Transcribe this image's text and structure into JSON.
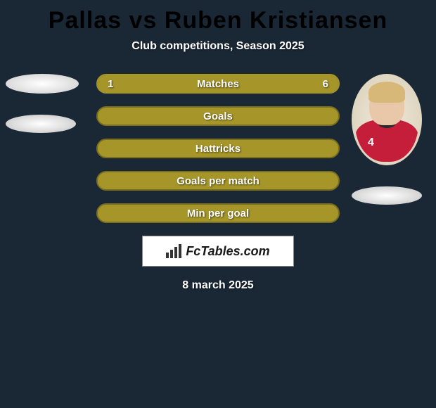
{
  "title": {
    "player1": "Pallas",
    "vs": "vs",
    "player2": "Ruben Kristiansen",
    "player1_color": "#b5a429",
    "vs_color": "#b5a429",
    "player2_color": "#b5a429"
  },
  "subtitle": "Club competitions, Season 2025",
  "background_color": "#1a2836",
  "player_right": {
    "jersey_color": "#c41e3a",
    "number": "4"
  },
  "stats": [
    {
      "label": "Matches",
      "left_value": "1",
      "right_value": "6",
      "left_pct": 14,
      "right_pct": 86,
      "has_values": true,
      "bar_color_left": "#a69629",
      "bar_color_right": "#a69629",
      "border_color": "#a69629"
    },
    {
      "label": "Goals",
      "left_value": "",
      "right_value": "",
      "left_pct": 0,
      "right_pct": 0,
      "has_values": false,
      "fill_color": "#a69629",
      "border_color": "#7a6e1f"
    },
    {
      "label": "Hattricks",
      "left_value": "",
      "right_value": "",
      "left_pct": 0,
      "right_pct": 0,
      "has_values": false,
      "fill_color": "#a69629",
      "border_color": "#7a6e1f"
    },
    {
      "label": "Goals per match",
      "left_value": "",
      "right_value": "",
      "left_pct": 0,
      "right_pct": 0,
      "has_values": false,
      "fill_color": "#a69629",
      "border_color": "#7a6e1f"
    },
    {
      "label": "Min per goal",
      "left_value": "",
      "right_value": "",
      "left_pct": 0,
      "right_pct": 0,
      "has_values": false,
      "fill_color": "#a69629",
      "border_color": "#7a6e1f"
    }
  ],
  "brand": "FcTables.com",
  "date": "8 march 2025"
}
